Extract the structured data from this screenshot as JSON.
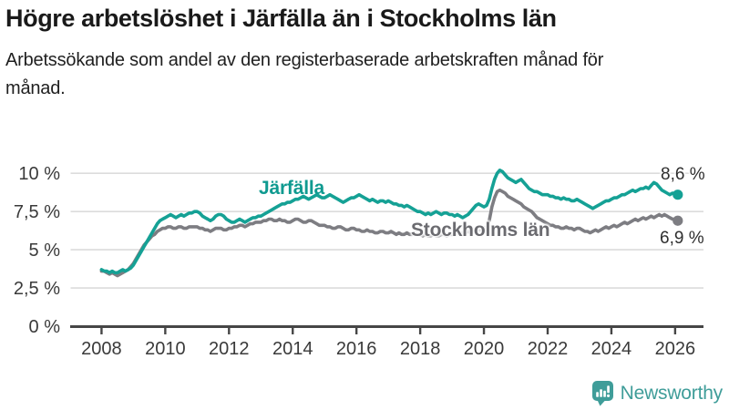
{
  "chart_data": {
    "type": "line",
    "title": "Högre arbetslöshet i Järfälla än i Stockholms län",
    "subtitle": "Arbetssökande som andel av den registerbaserade arbetskraften månad för månad.",
    "x_unit": "year-month",
    "x_start": "2008-01",
    "x_step_months": 1,
    "xticks": [
      2008,
      2010,
      2012,
      2014,
      2016,
      2018,
      2020,
      2022,
      2024,
      2026
    ],
    "yticks": [
      {
        "v": 0,
        "label": "0 %"
      },
      {
        "v": 2.5,
        "label": "2,5 %"
      },
      {
        "v": 5,
        "label": "5 %"
      },
      {
        "v": 7.5,
        "label": "7,5 %"
      },
      {
        "v": 10,
        "label": "10 %"
      }
    ],
    "xlim": [
      2007.03,
      2026.89
    ],
    "ylim": [
      0,
      11.8
    ],
    "grid": true,
    "legend": "inline-labels",
    "grid_color": "#dcdcdc",
    "axis_color": "#464646",
    "tick_color": "#3a3a3a",
    "series": [
      {
        "name": "Järfälla",
        "color": "#15a195",
        "label_color": "#0f9a90",
        "end_label": "8,6 %",
        "end_value": 8.6,
        "values": [
          3.7,
          3.6,
          3.6,
          3.5,
          3.6,
          3.5,
          3.5,
          3.6,
          3.7,
          3.6,
          3.7,
          3.8,
          4.0,
          4.3,
          4.6,
          4.9,
          5.2,
          5.5,
          5.8,
          6.1,
          6.4,
          6.7,
          6.9,
          7.0,
          7.1,
          7.2,
          7.3,
          7.2,
          7.1,
          7.2,
          7.3,
          7.2,
          7.3,
          7.4,
          7.4,
          7.5,
          7.5,
          7.4,
          7.2,
          7.1,
          7.0,
          6.9,
          7.0,
          7.2,
          7.3,
          7.3,
          7.2,
          7.0,
          6.9,
          6.8,
          6.8,
          6.9,
          7.0,
          6.9,
          6.8,
          6.9,
          7.0,
          7.1,
          7.1,
          7.2,
          7.2,
          7.3,
          7.4,
          7.5,
          7.6,
          7.7,
          7.8,
          7.9,
          8.0,
          8.0,
          8.1,
          8.1,
          8.2,
          8.3,
          8.3,
          8.4,
          8.5,
          8.4,
          8.3,
          8.4,
          8.5,
          8.6,
          8.5,
          8.4,
          8.4,
          8.5,
          8.6,
          8.5,
          8.4,
          8.3,
          8.2,
          8.1,
          8.2,
          8.3,
          8.4,
          8.4,
          8.5,
          8.6,
          8.5,
          8.4,
          8.3,
          8.2,
          8.3,
          8.2,
          8.1,
          8.2,
          8.2,
          8.1,
          8.2,
          8.1,
          8.0,
          8.0,
          7.9,
          7.9,
          7.8,
          7.9,
          7.8,
          7.7,
          7.6,
          7.5,
          7.5,
          7.4,
          7.3,
          7.4,
          7.3,
          7.4,
          7.5,
          7.4,
          7.3,
          7.4,
          7.4,
          7.3,
          7.3,
          7.2,
          7.3,
          7.2,
          7.1,
          7.2,
          7.3,
          7.5,
          7.7,
          7.9,
          8.0,
          7.9,
          7.8,
          7.9,
          8.3,
          9.0,
          9.6,
          10.0,
          10.2,
          10.1,
          9.9,
          9.7,
          9.6,
          9.5,
          9.4,
          9.5,
          9.6,
          9.4,
          9.2,
          9.0,
          8.9,
          8.8,
          8.8,
          8.7,
          8.6,
          8.6,
          8.6,
          8.5,
          8.5,
          8.4,
          8.4,
          8.3,
          8.4,
          8.3,
          8.3,
          8.2,
          8.2,
          8.3,
          8.2,
          8.1,
          8.0,
          7.9,
          7.8,
          7.7,
          7.8,
          7.9,
          8.0,
          8.1,
          8.2,
          8.2,
          8.3,
          8.4,
          8.4,
          8.5,
          8.6,
          8.6,
          8.7,
          8.8,
          8.9,
          8.8,
          8.9,
          9.0,
          9.0,
          9.1,
          9.0,
          9.2,
          9.4,
          9.3,
          9.1,
          8.9,
          8.8,
          8.7,
          8.6,
          8.7,
          8.7,
          8.6
        ]
      },
      {
        "name": "Stockholms län",
        "color": "#7d7d82",
        "label_color": "#6b6b70",
        "end_label": "6,9 %",
        "end_value": 6.9,
        "values": [
          3.6,
          3.6,
          3.5,
          3.4,
          3.5,
          3.4,
          3.3,
          3.4,
          3.5,
          3.6,
          3.7,
          3.9,
          4.1,
          4.4,
          4.7,
          5.0,
          5.3,
          5.5,
          5.7,
          5.9,
          6.0,
          6.2,
          6.3,
          6.4,
          6.4,
          6.5,
          6.5,
          6.4,
          6.4,
          6.5,
          6.5,
          6.4,
          6.4,
          6.5,
          6.5,
          6.5,
          6.5,
          6.4,
          6.4,
          6.3,
          6.3,
          6.2,
          6.3,
          6.4,
          6.4,
          6.4,
          6.3,
          6.3,
          6.4,
          6.4,
          6.5,
          6.5,
          6.6,
          6.6,
          6.5,
          6.6,
          6.7,
          6.7,
          6.8,
          6.8,
          6.8,
          6.9,
          6.9,
          7.0,
          7.0,
          6.9,
          6.9,
          7.0,
          6.9,
          6.9,
          6.8,
          6.8,
          6.9,
          7.0,
          7.0,
          6.9,
          6.8,
          6.8,
          6.9,
          6.9,
          6.8,
          6.7,
          6.6,
          6.6,
          6.6,
          6.5,
          6.5,
          6.4,
          6.4,
          6.5,
          6.5,
          6.4,
          6.3,
          6.3,
          6.4,
          6.4,
          6.3,
          6.3,
          6.2,
          6.2,
          6.3,
          6.2,
          6.2,
          6.1,
          6.1,
          6.2,
          6.2,
          6.1,
          6.1,
          6.2,
          6.1,
          6.0,
          6.1,
          6.0,
          6.0,
          6.1,
          6.0,
          6.0,
          6.1,
          6.0,
          6.0,
          5.9,
          6.0,
          5.9,
          5.9,
          6.0,
          5.9,
          5.9,
          6.0,
          6.0,
          5.9,
          6.0,
          6.0,
          6.0,
          6.1,
          6.0,
          6.1,
          6.1,
          6.2,
          6.1,
          6.2,
          6.2,
          6.3,
          6.3,
          6.4,
          6.5,
          6.9,
          7.8,
          8.4,
          8.8,
          8.9,
          8.8,
          8.7,
          8.5,
          8.4,
          8.3,
          8.2,
          8.1,
          8.0,
          7.8,
          7.7,
          7.6,
          7.5,
          7.3,
          7.1,
          7.0,
          6.9,
          6.8,
          6.7,
          6.6,
          6.6,
          6.5,
          6.5,
          6.4,
          6.4,
          6.5,
          6.4,
          6.4,
          6.3,
          6.4,
          6.4,
          6.3,
          6.2,
          6.2,
          6.1,
          6.2,
          6.3,
          6.2,
          6.3,
          6.4,
          6.5,
          6.4,
          6.5,
          6.6,
          6.5,
          6.6,
          6.7,
          6.8,
          6.7,
          6.8,
          6.9,
          7.0,
          6.9,
          7.0,
          7.1,
          7.0,
          7.1,
          7.2,
          7.1,
          7.2,
          7.3,
          7.2,
          7.3,
          7.2,
          7.1,
          7.0,
          7.0,
          6.9
        ]
      }
    ]
  },
  "branding": {
    "logo_text": "Newsworthy",
    "logo_icon": "bar-chart-speech-bubble-icon",
    "accent_color": "#3f9d99"
  }
}
